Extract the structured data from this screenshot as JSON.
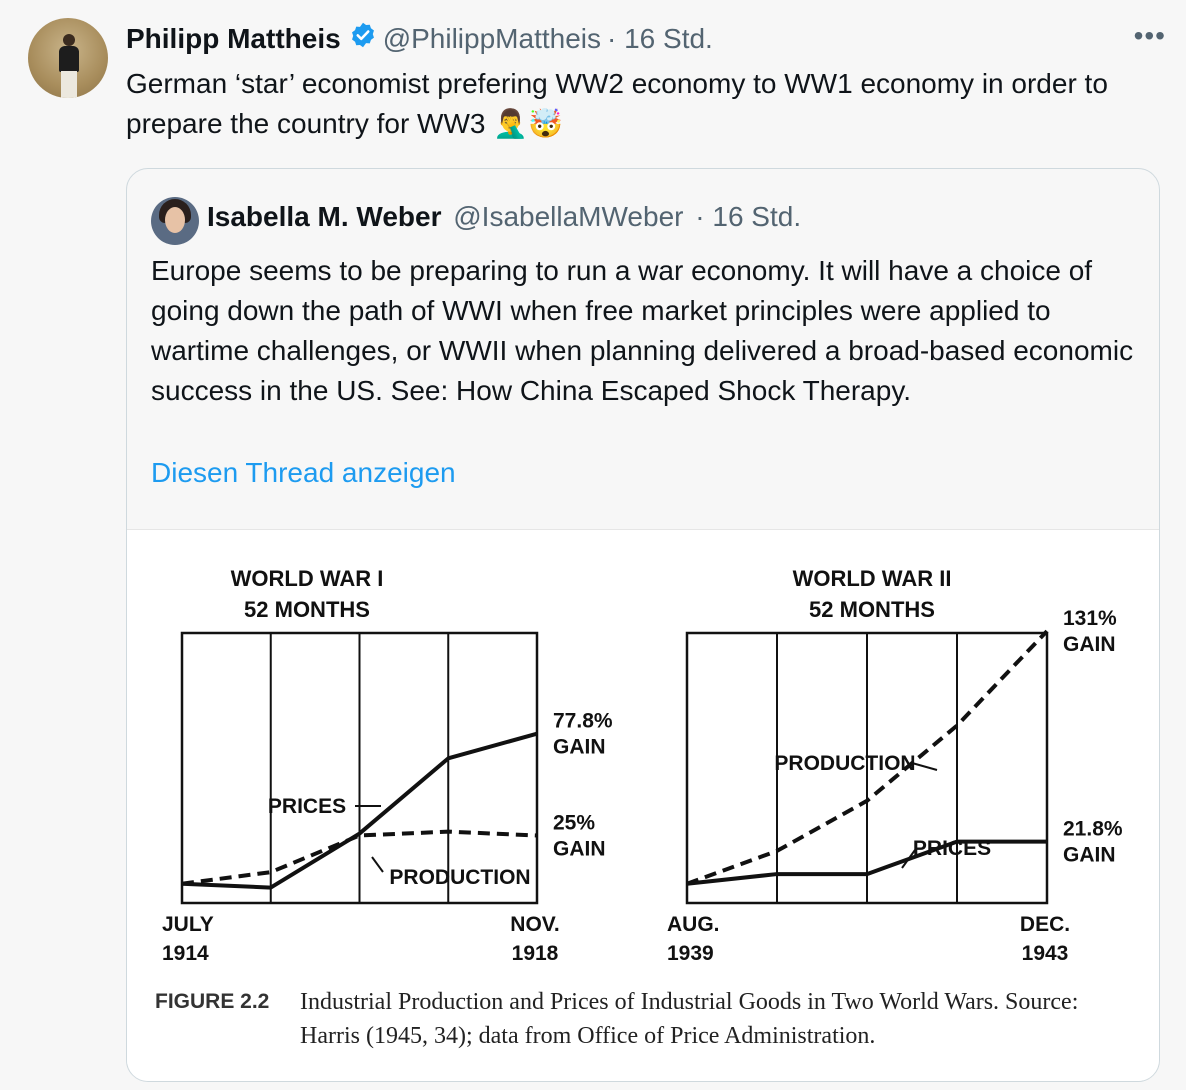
{
  "tweet": {
    "author_name": "Philipp Mattheis",
    "handle": "@PhilippMattheis",
    "time": "· 16 Std.",
    "text": "German ‘star’ economist prefering WW2 economy to WW1 economy in order to prepare the country for WW3 🤦‍♂️🤯",
    "more_icon": "•••",
    "verified_color": "#1d9bf0"
  },
  "quote": {
    "author_name": "Isabella M. Weber",
    "handle": "@IsabellaMWeber",
    "time": "· 16 Std.",
    "text": "Europe seems to be preparing to run a war economy. It will have a choice of going down the path of WWI when free market principles were applied to wartime challenges, or WWII when planning delivered a broad-based economic success in the US. See: How China Escaped Shock Therapy.",
    "show_thread": "Diesen Thread anzeigen"
  },
  "figure": {
    "label": "FIGURE 2.2",
    "caption": "Industrial Production and Prices of Industrial Goods in Two World Wars. Source: Harris (1945, 34); data from Office of Price Administration."
  },
  "chart_data": [
    {
      "type": "line",
      "title": "WORLD WAR I",
      "subtitle": "52 MONTHS",
      "x_start_label": [
        "JULY",
        "1914"
      ],
      "x_end_label": [
        "NOV.",
        "1918"
      ],
      "x": [
        0,
        1,
        2,
        3,
        4
      ],
      "ylim": [
        -10,
        130
      ],
      "series": [
        {
          "name": "PRICES",
          "values": [
            0,
            -2,
            26,
            65,
            77.8
          ],
          "style": "solid"
        },
        {
          "name": "PRODUCTION",
          "values": [
            0,
            6,
            25,
            27,
            25
          ],
          "style": "dashed"
        }
      ],
      "annotations": [
        {
          "series": "PRICES",
          "lines": [
            "77.8%",
            "GAIN"
          ]
        },
        {
          "series": "PRODUCTION",
          "lines": [
            "25%",
            "GAIN"
          ]
        }
      ],
      "grid": true
    },
    {
      "type": "line",
      "title": "WORLD WAR II",
      "subtitle": "52 MONTHS",
      "x_start_label": [
        "AUG.",
        "1939"
      ],
      "x_end_label": [
        "DEC.",
        "1943"
      ],
      "x": [
        0,
        1,
        2,
        3,
        4
      ],
      "ylim": [
        -10,
        130
      ],
      "series": [
        {
          "name": "PRODUCTION",
          "values": [
            0,
            17,
            43,
            82,
            131
          ],
          "style": "dashed"
        },
        {
          "name": "PRICES",
          "values": [
            0,
            5,
            5,
            21.8,
            21.8
          ],
          "style": "solid"
        }
      ],
      "annotations": [
        {
          "series": "PRODUCTION",
          "lines": [
            "131%",
            "GAIN"
          ]
        },
        {
          "series": "PRICES",
          "lines": [
            "21.8%",
            "GAIN"
          ]
        }
      ],
      "grid": true
    }
  ]
}
